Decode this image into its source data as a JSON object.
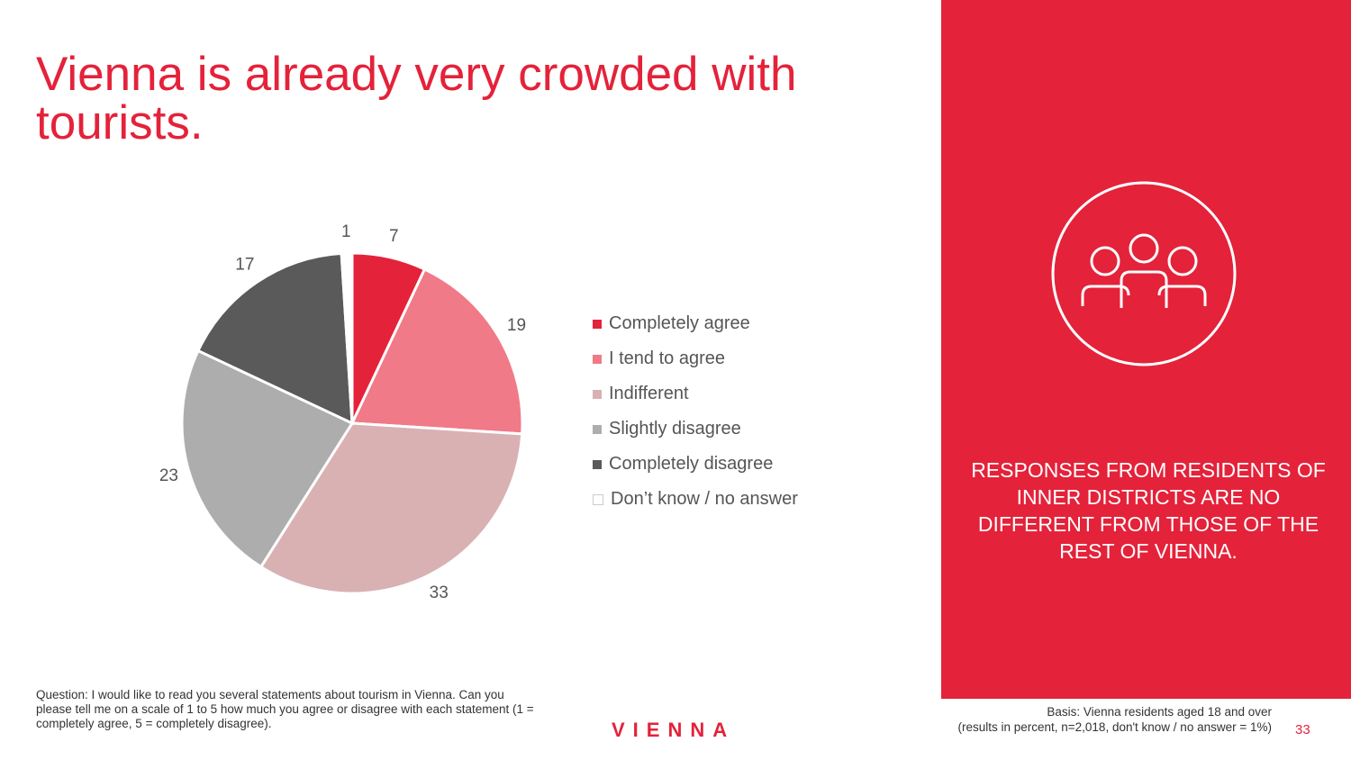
{
  "slide": {
    "title": "Vienna is already very crowded with tourists.",
    "page_number": "33",
    "logo_text": "VIENNA",
    "question": "Question: I would like to read you several statements about tourism in Vienna. Can you please tell me on a scale of 1 to 5 how much you agree or disagree with each statement (1 = completely agree, 5 = completely disagree).",
    "basis_line1": "Basis: Vienna residents aged 18 and over",
    "basis_line2": "(results in percent, n=2,018, don't know / no answer = 1%)"
  },
  "panel": {
    "text": "RESPONSES FROM RESIDENTS OF INNER DISTRICTS ARE NO DIFFERENT FROM THOSE OF THE REST OF VIENNA.",
    "icon": "people-group-icon"
  },
  "colors": {
    "brand_red": "#e4223a",
    "text_gray": "#555555"
  },
  "chart_data": {
    "type": "pie",
    "title": "",
    "start_angle": "12 o'clock, clockwise",
    "legend_position": "right",
    "labels": [
      "Completely agree",
      "I tend to agree",
      "Indifferent",
      "Slightly disagree",
      "Completely disagree",
      "Don’t know / no answer"
    ],
    "values": [
      7,
      19,
      33,
      23,
      17,
      1
    ],
    "colors": [
      "#e4223a",
      "#f07a87",
      "#d9b1b3",
      "#adadad",
      "#5a5a5a",
      "#ffffff"
    ],
    "data_labels": [
      "7",
      "19",
      "33",
      "23",
      "17",
      "1"
    ]
  }
}
